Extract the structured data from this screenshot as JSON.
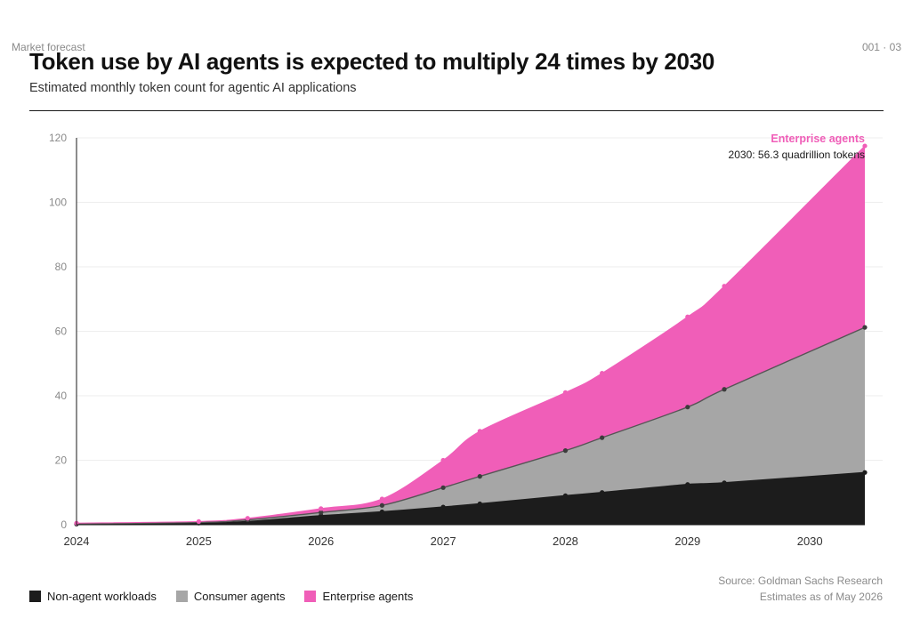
{
  "header": {
    "kicker": "Market forecast",
    "page_number": "001 · 03",
    "title": "Token use by AI agents is expected to multiply 24 times by 2030",
    "subtitle": "Estimated monthly token count for agentic AI applications"
  },
  "footer": {
    "source": "Source: Goldman Sachs Research",
    "note": "Estimates as of May 2026"
  },
  "chart_data": {
    "type": "area",
    "stacked": true,
    "x_unit": "year",
    "xlim": [
      2024,
      2030.45
    ],
    "ylim": [
      0,
      120
    ],
    "y_ticks": [
      0,
      20,
      40,
      60,
      80,
      100,
      120
    ],
    "x_ticks": [
      2024,
      2025,
      2026,
      2027,
      2028,
      2029,
      2030
    ],
    "x_tick_labels": [
      "2024",
      "2025",
      "2026",
      "2027",
      "2028",
      "2029",
      "2030"
    ],
    "grid": true,
    "legend_position": "bottom-left",
    "x": [
      2024,
      2025,
      2025.4,
      2026,
      2026.5,
      2027,
      2027.3,
      2028,
      2028.3,
      2029,
      2029.3,
      2030.45
    ],
    "series": [
      {
        "name": "Non-agent workloads",
        "color": "#1c1c1c",
        "values": [
          0.2,
          0.5,
          1.0,
          2.8,
          4.0,
          5.5,
          6.5,
          9.0,
          10.0,
          12.5,
          13.0,
          16.2
        ]
      },
      {
        "name": "Consumer agents",
        "color": "#a6a6a6",
        "values": [
          0.1,
          0.2,
          0.5,
          1.0,
          2.0,
          6.0,
          8.5,
          14.0,
          17.0,
          24.0,
          29.0,
          45.0
        ]
      },
      {
        "name": "Enterprise agents",
        "color": "#f05eb8",
        "values": [
          0.2,
          0.3,
          0.5,
          1.2,
          2.0,
          8.5,
          14.0,
          18.0,
          20.0,
          28.0,
          32.0,
          56.3
        ]
      }
    ],
    "annotation": {
      "series_label": "Enterprise agents",
      "text": "2030: 56.3 quadrillion tokens"
    }
  },
  "colors": {
    "non_agent": "#1c1c1c",
    "consumer": "#a6a6a6",
    "enterprise": "#f05eb8",
    "axis": "#1a1a1a",
    "grid": "#eeeeee"
  }
}
